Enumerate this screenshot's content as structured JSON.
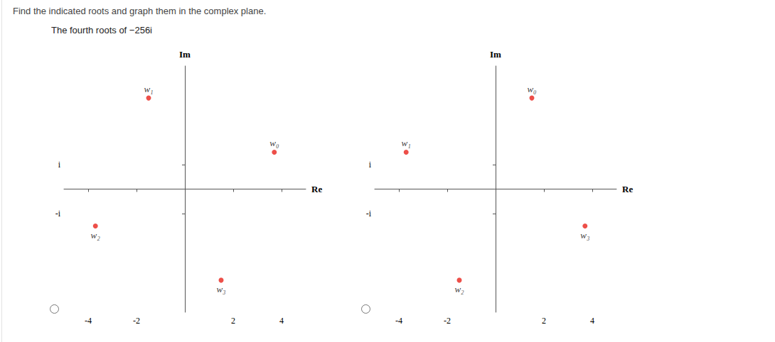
{
  "question": "Find the indicated roots and graph them in the complex plane.",
  "prompt": "The fourth roots of −256i",
  "chart_data": [
    {
      "type": "scatter",
      "color": "#e8231c",
      "grid": false,
      "x_label": "Re",
      "y_label": "Im",
      "labels": [
        "w₀",
        "w₁",
        "w₂",
        "w₃"
      ],
      "x": [
        3.7,
        -1.5,
        -3.7,
        1.5
      ],
      "values": [
        1.5,
        3.7,
        -1.5,
        -3.7
      ],
      "xlim": [
        -5,
        5
      ],
      "ylim": [
        -5,
        5
      ],
      "xticks": [
        -4,
        -2,
        2,
        4
      ],
      "yticks": [
        {
          "value": 1,
          "label": "i"
        },
        {
          "value": -1,
          "label": "-i"
        }
      ]
    },
    {
      "type": "scatter",
      "color": "#e8231c",
      "grid": false,
      "x_label": "Re",
      "y_label": "Im",
      "labels": [
        "w₀",
        "w₁",
        "w₂",
        "w₃"
      ],
      "x": [
        1.5,
        -3.7,
        -1.5,
        3.7
      ],
      "values": [
        3.7,
        1.5,
        -3.7,
        -1.5
      ],
      "xlim": [
        -5,
        5
      ],
      "ylim": [
        -5,
        5
      ],
      "xticks": [
        -4,
        -2,
        2,
        4
      ],
      "yticks": [
        {
          "value": 1,
          "label": "i"
        },
        {
          "value": -1,
          "label": "-i"
        }
      ]
    }
  ]
}
